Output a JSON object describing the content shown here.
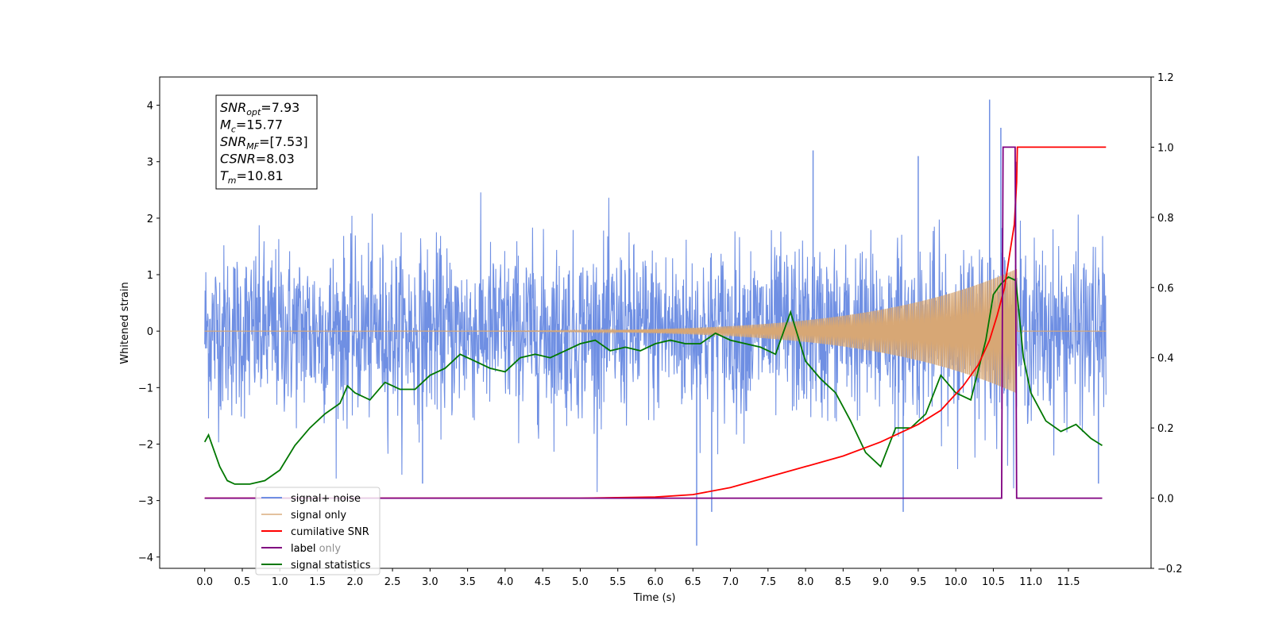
{
  "chart_data": {
    "type": "line",
    "xlabel": "Time (s)",
    "ylabel": "Whitened strain",
    "xlim": [
      -0.6,
      12.6
    ],
    "ylim": [
      -4.2,
      4.5
    ],
    "y2lim": [
      -0.2,
      1.2
    ],
    "x_ticks": [
      "0.0",
      "0.5",
      "1.0",
      "1.5",
      "2.0",
      "2.5",
      "3.0",
      "3.5",
      "4.0",
      "4.5",
      "5.0",
      "5.5",
      "6.0",
      "6.5",
      "7.0",
      "7.5",
      "8.0",
      "8.5",
      "9.0",
      "9.5",
      "10.0",
      "10.5",
      "11.0",
      "11.5"
    ],
    "y_ticks": [
      "4",
      "3",
      "2",
      "1",
      "0",
      "−1",
      "−2",
      "−3",
      "−4"
    ],
    "y2_ticks": [
      "1.2",
      "1.0",
      "0.8",
      "0.6",
      "0.4",
      "0.2",
      "0.0",
      "−0.2"
    ],
    "annotation": [
      {
        "base": "SNR",
        "sub": "opt",
        "value": "=7.93"
      },
      {
        "base": "M",
        "sub": "c",
        "value": "=15.77"
      },
      {
        "base": "SNR",
        "sub": "MF",
        "value": "=[7.53]"
      },
      {
        "base": "CSNR",
        "sub": "",
        "value": "=8.03"
      },
      {
        "base": "T",
        "sub": "m",
        "value": "=10.81"
      }
    ],
    "legend_position": "lower-left",
    "series": [
      {
        "name": "signal+ noise",
        "axis": "left",
        "color": "#6f8fe3",
        "noise_std": 0.75,
        "x_range": [
          0.0,
          12.0
        ],
        "points": [
          [
            2.9,
            -2.7
          ],
          [
            8.1,
            3.2
          ],
          [
            10.45,
            4.1
          ],
          [
            10.6,
            3.6
          ],
          [
            6.55,
            -3.8
          ],
          [
            6.75,
            -3.2
          ],
          [
            9.3,
            -3.2
          ],
          [
            11.9,
            -2.7
          ],
          [
            9.5,
            3.1
          ],
          [
            10.8,
            3.0
          ]
        ]
      },
      {
        "name": "signal only",
        "axis": "left",
        "color": "#d7a775",
        "chirp_end": 10.81,
        "peak_amplitude": 1.1
      },
      {
        "name": "cumilative SNR",
        "axis": "right",
        "color": "#ff0000",
        "x": [
          0.0,
          5.0,
          6.0,
          6.5,
          7.0,
          7.5,
          8.0,
          8.5,
          9.0,
          9.5,
          9.8,
          10.1,
          10.3,
          10.45,
          10.55,
          10.65,
          10.72,
          10.78,
          10.81,
          10.82,
          12.0
        ],
        "values": [
          0.0,
          0.0,
          0.003,
          0.01,
          0.03,
          0.06,
          0.09,
          0.12,
          0.16,
          0.21,
          0.25,
          0.32,
          0.38,
          0.45,
          0.52,
          0.6,
          0.7,
          0.78,
          0.9,
          1.0,
          1.0
        ]
      },
      {
        "name": "label",
        "axis": "right",
        "color": "#800080",
        "x": [
          0.0,
          10.61,
          10.63,
          10.79,
          10.81,
          11.95
        ],
        "values": [
          0.0,
          0.0,
          1.0,
          1.0,
          0.0,
          0.0
        ]
      },
      {
        "name": "label only",
        "axis": "right",
        "color": "#800080",
        "hidden_behind_legend": true
      },
      {
        "name": "signal statistics",
        "axis": "right",
        "color": "#007700",
        "x": [
          0.0,
          0.05,
          0.1,
          0.2,
          0.3,
          0.4,
          0.5,
          0.6,
          0.8,
          1.0,
          1.2,
          1.4,
          1.6,
          1.8,
          1.9,
          2.0,
          2.2,
          2.4,
          2.5,
          2.6,
          2.8,
          3.0,
          3.2,
          3.4,
          3.6,
          3.8,
          4.0,
          4.2,
          4.4,
          4.6,
          4.8,
          5.0,
          5.2,
          5.4,
          5.6,
          5.8,
          6.0,
          6.2,
          6.4,
          6.6,
          6.8,
          7.0,
          7.2,
          7.4,
          7.6,
          7.8,
          8.0,
          8.2,
          8.4,
          8.6,
          8.8,
          9.0,
          9.2,
          9.4,
          9.6,
          9.8,
          10.0,
          10.2,
          10.4,
          10.5,
          10.6,
          10.7,
          10.8,
          10.9,
          11.0,
          11.2,
          11.4,
          11.6,
          11.8,
          11.95
        ],
        "values": [
          0.16,
          0.18,
          0.15,
          0.09,
          0.05,
          0.04,
          0.04,
          0.04,
          0.05,
          0.08,
          0.15,
          0.2,
          0.24,
          0.27,
          0.32,
          0.3,
          0.28,
          0.33,
          0.32,
          0.31,
          0.31,
          0.35,
          0.37,
          0.41,
          0.39,
          0.37,
          0.36,
          0.4,
          0.41,
          0.4,
          0.42,
          0.44,
          0.45,
          0.42,
          0.43,
          0.42,
          0.44,
          0.45,
          0.44,
          0.44,
          0.47,
          0.45,
          0.44,
          0.43,
          0.41,
          0.53,
          0.39,
          0.34,
          0.3,
          0.22,
          0.13,
          0.09,
          0.2,
          0.2,
          0.24,
          0.35,
          0.3,
          0.28,
          0.45,
          0.58,
          0.61,
          0.63,
          0.62,
          0.4,
          0.3,
          0.22,
          0.19,
          0.21,
          0.17,
          0.15
        ]
      }
    ]
  }
}
